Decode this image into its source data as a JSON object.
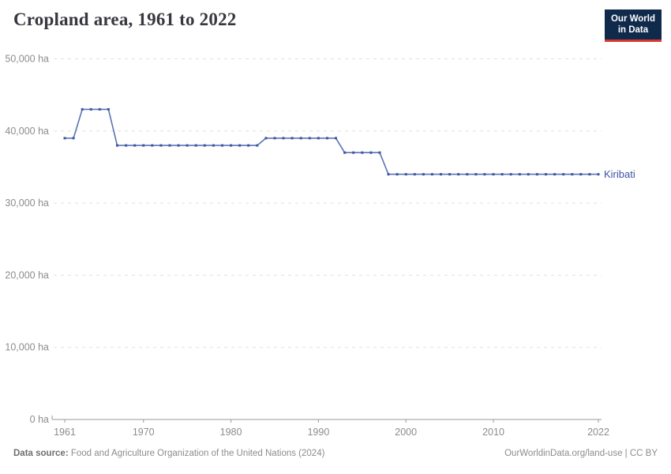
{
  "header": {
    "title": "Cropland area, 1961 to 2022"
  },
  "logo": {
    "line1": "Our World",
    "line2": "in Data",
    "bg_color": "#102a4c",
    "accent_color": "#d7382d"
  },
  "chart_data": {
    "type": "line",
    "title": "Cropland area, 1961 to 2022",
    "xlabel": "",
    "ylabel": "",
    "unit": "ha",
    "ylim": [
      0,
      50000
    ],
    "xlim": [
      1961,
      2022
    ],
    "yticks": [
      0,
      10000,
      20000,
      30000,
      40000,
      50000
    ],
    "ytick_labels": [
      "0 ha",
      "10,000 ha",
      "20,000 ha",
      "30,000 ha",
      "40,000 ha",
      "50,000 ha"
    ],
    "xticks": [
      1961,
      1970,
      1980,
      1990,
      2000,
      2010,
      2022
    ],
    "xtick_labels": [
      "1961",
      "1970",
      "1980",
      "1990",
      "2000",
      "2010",
      "2022"
    ],
    "grid": "horizontal-dashed",
    "gridline_color": "#e0e0e0",
    "axis_color": "#999999",
    "tick_label_color": "#8c8c8c",
    "legend_position": "end-of-line-label",
    "series": [
      {
        "name": "Kiribati",
        "line_color": "#5e72b5",
        "marker_color": "#3c55a5",
        "label_color": "#3d54a4",
        "x": [
          1961,
          1962,
          1963,
          1964,
          1965,
          1966,
          1967,
          1968,
          1969,
          1970,
          1971,
          1972,
          1973,
          1974,
          1975,
          1976,
          1977,
          1978,
          1979,
          1980,
          1981,
          1982,
          1983,
          1984,
          1985,
          1986,
          1987,
          1988,
          1989,
          1990,
          1991,
          1992,
          1993,
          1994,
          1995,
          1996,
          1997,
          1998,
          1999,
          2000,
          2001,
          2002,
          2003,
          2004,
          2005,
          2006,
          2007,
          2008,
          2009,
          2010,
          2011,
          2012,
          2013,
          2014,
          2015,
          2016,
          2017,
          2018,
          2019,
          2020,
          2021,
          2022
        ],
        "values": [
          39000,
          39000,
          43000,
          43000,
          43000,
          43000,
          38000,
          38000,
          38000,
          38000,
          38000,
          38000,
          38000,
          38000,
          38000,
          38000,
          38000,
          38000,
          38000,
          38000,
          38000,
          38000,
          38000,
          39000,
          39000,
          39000,
          39000,
          39000,
          39000,
          39000,
          39000,
          39000,
          37000,
          37000,
          37000,
          37000,
          37000,
          34000,
          34000,
          34000,
          34000,
          34000,
          34000,
          34000,
          34000,
          34000,
          34000,
          34000,
          34000,
          34000,
          34000,
          34000,
          34000,
          34000,
          34000,
          34000,
          34000,
          34000,
          34000,
          34000,
          34000,
          34000
        ]
      }
    ]
  },
  "footer": {
    "datasource_label": "Data source:",
    "datasource_rest": " Food and Agriculture Organization of the United Nations (2024)",
    "right_text": "OurWorldinData.org/land-use | CC BY"
  }
}
